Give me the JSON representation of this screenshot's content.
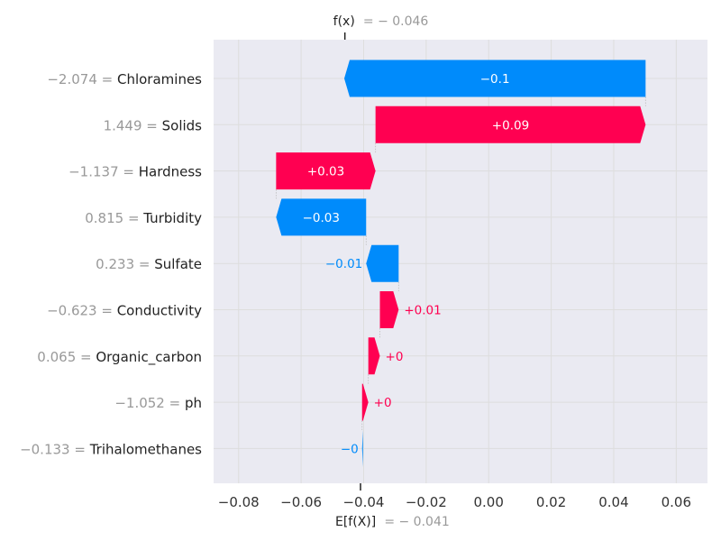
{
  "chart_data": {
    "type": "waterfall",
    "fx_label": "f(x)",
    "fx_value": "= − 0.046",
    "ex_label": "E[f(X)]",
    "ex_value": "= − 0.041",
    "base_value": -0.041,
    "output_value": -0.046,
    "xlim": [
      -0.088,
      0.07
    ],
    "x_ticks": [
      -0.08,
      -0.06,
      -0.04,
      -0.02,
      0.0,
      0.02,
      0.04,
      0.06
    ],
    "x_tick_labels": [
      "−0.08",
      "−0.06",
      "−0.04",
      "−0.02",
      "0.00",
      "0.02",
      "0.04",
      "0.06"
    ],
    "grid": true,
    "features": [
      {
        "name": "Chloramines",
        "value_text": "−2.074",
        "start": 0.0502,
        "end": -0.0462,
        "label": "−0.1"
      },
      {
        "name": "Solids",
        "value_text": "1.449",
        "start": -0.0362,
        "end": 0.0502,
        "label": "+0.09"
      },
      {
        "name": "Hardness",
        "value_text": "−1.137",
        "start": -0.068,
        "end": -0.0362,
        "label": "+0.03"
      },
      {
        "name": "Turbidity",
        "value_text": "0.815",
        "start": -0.0392,
        "end": -0.068,
        "label": "−0.03"
      },
      {
        "name": "Sulfate",
        "value_text": "0.233",
        "start": -0.0288,
        "end": -0.0392,
        "label": "−0.01"
      },
      {
        "name": "Conductivity",
        "value_text": "−0.623",
        "start": -0.0348,
        "end": -0.0288,
        "label": "+0.01"
      },
      {
        "name": "Organic_carbon",
        "value_text": "0.065",
        "start": -0.0385,
        "end": -0.0348,
        "label": "+0"
      },
      {
        "name": "ph",
        "value_text": "−1.052",
        "start": -0.0405,
        "end": -0.0385,
        "label": "+0"
      },
      {
        "name": "Trihalomethanes",
        "value_text": "−0.133",
        "start": -0.0402,
        "end": -0.0405,
        "label": "−0"
      }
    ],
    "colors": {
      "positive": "#ff0051",
      "negative": "#008bfb",
      "grid": "#dddddd",
      "background": "#eaeaf2"
    }
  }
}
